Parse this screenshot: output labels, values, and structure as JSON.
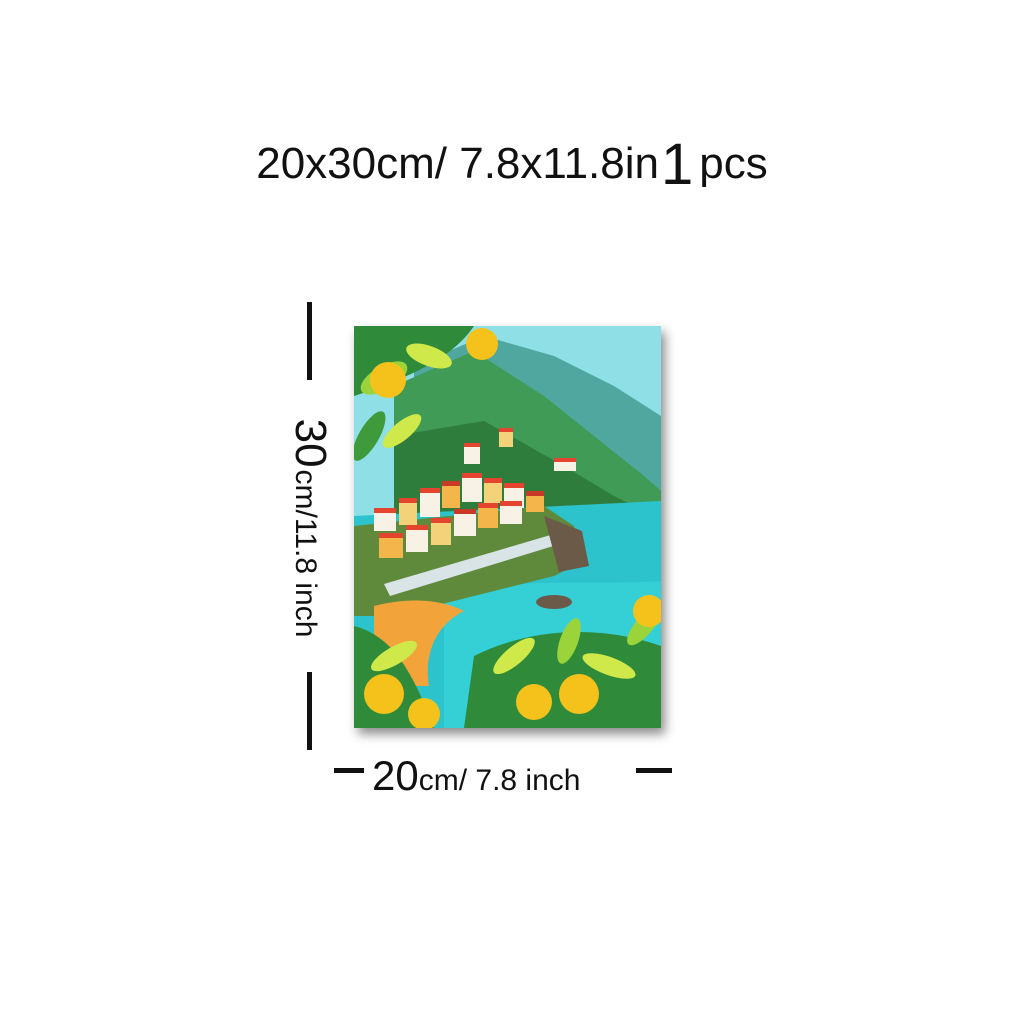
{
  "header": {
    "size_text": "20x30cm/ 7.8x11.8in",
    "quantity_number": "1",
    "quantity_unit": "pcs"
  },
  "dimensions": {
    "height_number": "30",
    "height_unit": "cm/11.8 inch",
    "width_number": "20",
    "width_unit": "cm/ 7.8 inch"
  },
  "artwork": {
    "subject": "coastal-village-lemons-painting",
    "colors": {
      "sea": "#2cc3cc",
      "sky": "#8fe0e6",
      "mountain": "#3f9b55",
      "leaf": "#2f8a3a",
      "lemon": "#f4c21a",
      "roof": "#e5452e"
    }
  }
}
